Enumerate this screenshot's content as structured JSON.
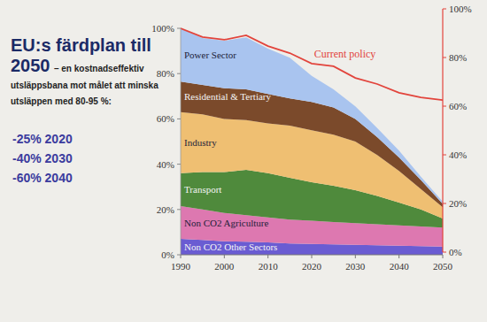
{
  "chart_data": {
    "type": "area",
    "stacked": true,
    "title": "EU:s färdplan till 2050",
    "subtitle": "– en kostnadseffektiv utsläppsbana mot målet att minska utsläppen med 80-95 %:",
    "annotations": [
      "-25% 2020",
      "-40% 2030",
      "-60% 2040"
    ],
    "x": [
      1990,
      1995,
      2000,
      2005,
      2010,
      2015,
      2020,
      2025,
      2030,
      2035,
      2040,
      2045,
      2050
    ],
    "xlim": [
      1990,
      2050
    ],
    "xticks": [
      1990,
      2000,
      2010,
      2020,
      2030,
      2040,
      2050
    ],
    "ylim": [
      0,
      100
    ],
    "yticks": [
      {
        "value": 0,
        "label": "0%"
      },
      {
        "value": 20,
        "label": "20%"
      },
      {
        "value": 40,
        "label": "40%"
      },
      {
        "value": 60,
        "label": "60%"
      },
      {
        "value": 80,
        "label": "80%"
      },
      {
        "value": 100,
        "label": "100%"
      }
    ],
    "y2lim": [
      0,
      100
    ],
    "y2ticks": [
      {
        "value": 0,
        "label": "0%"
      },
      {
        "value": 20,
        "label": "20%"
      },
      {
        "value": 40,
        "label": "40%"
      },
      {
        "value": 60,
        "label": "60%"
      },
      {
        "value": 80,
        "label": "80%"
      },
      {
        "value": 100,
        "label": "100%"
      }
    ],
    "series": [
      {
        "name": "Non CO2 Other Sectors",
        "color": "#6a5cd2",
        "values": [
          7,
          6.5,
          6,
          5.8,
          5.5,
          5,
          4.8,
          4.6,
          4.4,
          4.2,
          4,
          3.8,
          3.6
        ]
      },
      {
        "name": "Non CO2 Agriculture",
        "color": "#dd78b0",
        "values": [
          14.5,
          13.5,
          12.5,
          11.7,
          11,
          10.5,
          10.2,
          9.9,
          9.6,
          9.3,
          9,
          8.7,
          8.4
        ]
      },
      {
        "name": "Transport",
        "color": "#4f8a3c",
        "values": [
          14.5,
          16.5,
          18,
          20,
          19.5,
          18.5,
          17,
          16,
          14.5,
          12.5,
          10,
          7.5,
          4
        ]
      },
      {
        "name": "Industry",
        "color": "#efbf72",
        "values": [
          27,
          25.5,
          23.5,
          22,
          22,
          23,
          23,
          22.5,
          21.5,
          18,
          14,
          9,
          5
        ]
      },
      {
        "name": "Residential & Tertiary",
        "color": "#7b4a2b",
        "values": [
          13.5,
          13,
          13.5,
          13.5,
          13,
          12,
          12.5,
          12,
          10,
          8,
          6,
          4,
          1.5
        ]
      },
      {
        "name": "Power Sector",
        "color": "#a9c4ef",
        "values": [
          23.5,
          20.7,
          21,
          23,
          20,
          18,
          11.5,
          8,
          5.5,
          4,
          3,
          1.5,
          0.9
        ]
      },
      {
        "name": "Current policy",
        "type": "line",
        "axis": "y2",
        "color": "#e2443c",
        "values": [
          92,
          88.4,
          87.3,
          89.1,
          84.7,
          81.8,
          77.5,
          76.4,
          71.6,
          69.1,
          65.5,
          63.6,
          62.5
        ]
      }
    ]
  }
}
